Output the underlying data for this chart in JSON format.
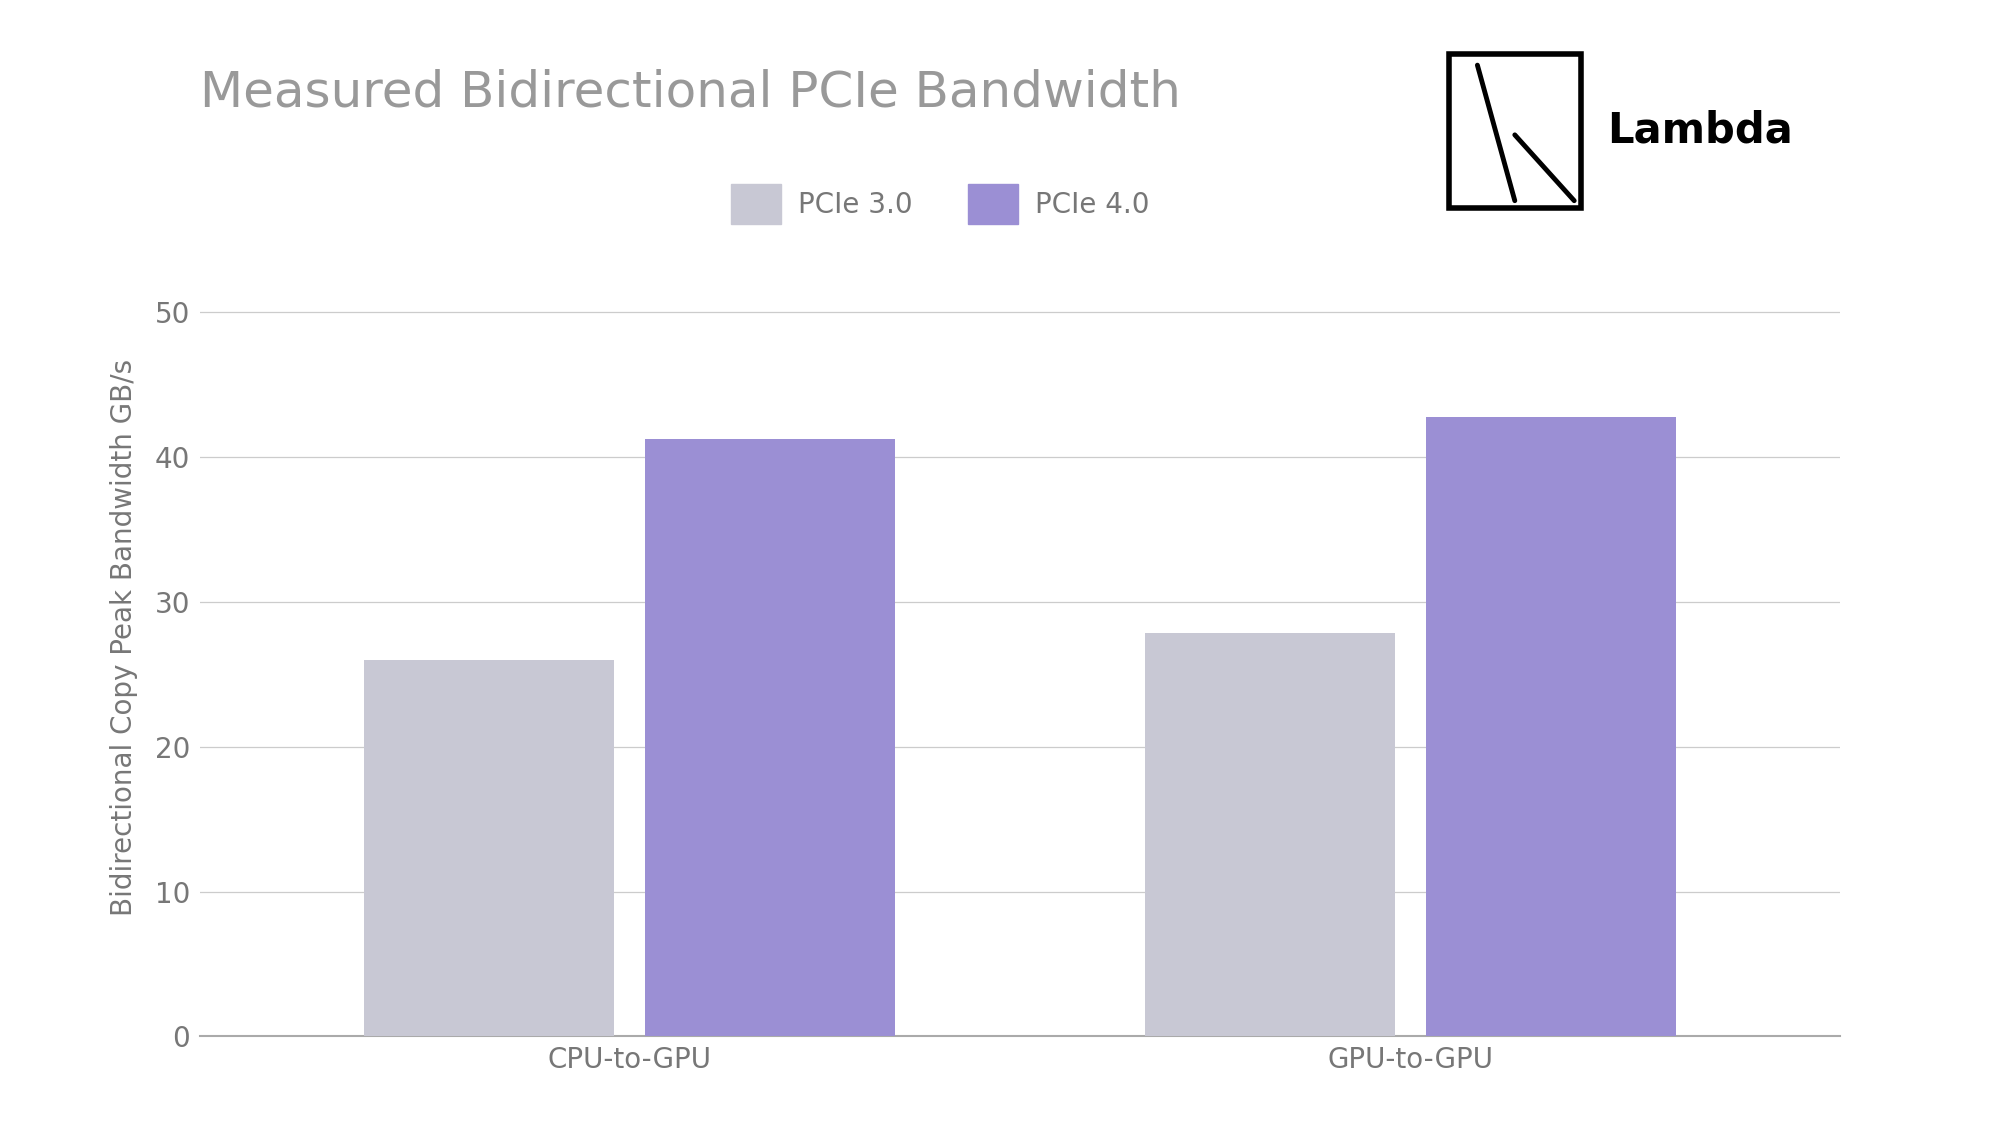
{
  "title": "Measured Bidirectional PCIe Bandwidth",
  "ylabel": "Bidirectional Copy Peak Bandwidth GB/s",
  "categories": [
    "CPU-to-GPU",
    "GPU-to-GPU"
  ],
  "pcie30_values": [
    26.0,
    27.8
  ],
  "pcie40_values": [
    41.2,
    42.7
  ],
  "pcie30_color": "#c8c8d4",
  "pcie40_color": "#9b8fd4",
  "ylim": [
    0,
    55
  ],
  "yticks": [
    0,
    10,
    20,
    30,
    40,
    50
  ],
  "legend_labels": [
    "PCIe 3.0",
    "PCIe 4.0"
  ],
  "background_color": "#ffffff",
  "title_fontsize": 36,
  "axis_label_fontsize": 20,
  "tick_fontsize": 20,
  "legend_fontsize": 20,
  "bar_width": 0.32,
  "title_color": "#999999",
  "tick_color": "#777777",
  "grid_color": "#cccccc",
  "spine_color": "#aaaaaa"
}
